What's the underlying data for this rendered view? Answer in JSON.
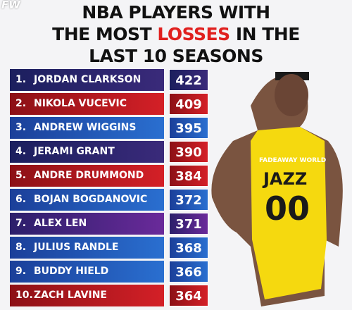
{
  "logo": "FW",
  "title": {
    "line1": "NBA PLAYERS WITH",
    "line2_before": "THE MOST",
    "line2_highlight": "LOSSES",
    "line2_after": "IN THE",
    "line3": "LAST 10 SEASONS"
  },
  "watermark": "FADEAWAY WORLD",
  "jersey": {
    "team": "JAZZ",
    "number": "00"
  },
  "table": {
    "rows": [
      [
        "1.",
        "JORDAN CLARKSON",
        "422"
      ],
      [
        "2.",
        "NIKOLA VUCEVIC",
        "409"
      ],
      [
        "3.",
        "ANDREW WIGGINS",
        "395"
      ],
      [
        "4.",
        "JERAMI GRANT",
        "390"
      ],
      [
        "5.",
        "ANDRE DRUMMOND",
        "384"
      ],
      [
        "6.",
        "BOJAN BOGDANOVIC",
        "372"
      ],
      [
        "7.",
        "ALEX LEN",
        "371"
      ],
      [
        "8.",
        "JULIUS RANDLE",
        "368"
      ],
      [
        "9.",
        "BUDDY HIELD",
        "366"
      ],
      [
        "10.",
        "ZACH LAVINE",
        "364"
      ]
    ]
  }
}
